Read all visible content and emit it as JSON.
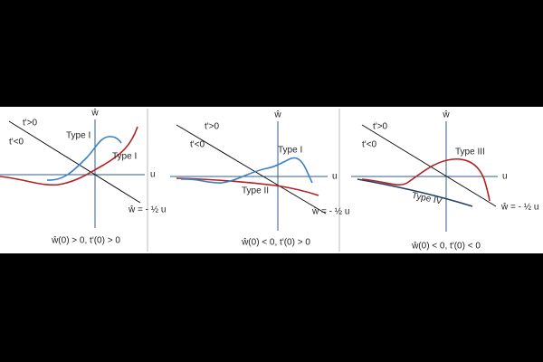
{
  "panels": [
    {
      "axis_y": "ŵ",
      "axis_x": "u",
      "region_upper": "t'>0",
      "region_lower": "t'<0",
      "curve_labels": [
        "Type I",
        "Type I"
      ],
      "line_label": "ŵ = - ½ u",
      "caption": "ŵ(0) > 0, t'(0) > 0"
    },
    {
      "axis_y": "ŵ",
      "axis_x": "u",
      "region_upper": "t'>0",
      "region_lower": "t'<0",
      "curve_labels": [
        "Type I",
        "Type II"
      ],
      "line_label": "ŵ = - ½ u",
      "caption": "ŵ(0) < 0, t'(0) > 0"
    },
    {
      "axis_y": "ŵ",
      "axis_x": "u",
      "region_upper": "t'>0",
      "region_lower": "t'<0",
      "curve_labels": [
        "Type III",
        "Type IV"
      ],
      "line_label": "ŵ = - ½ u",
      "caption": "ŵ(0) < 0, t'(0) < 0"
    }
  ]
}
